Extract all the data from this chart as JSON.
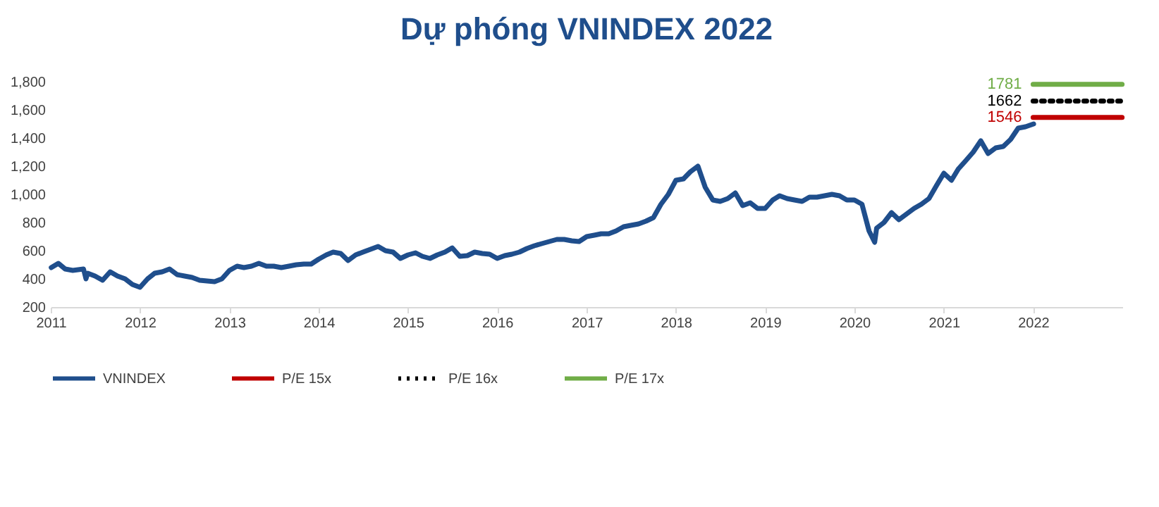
{
  "chart_data": {
    "type": "line",
    "title": "Dự phóng VNINDEX 2022",
    "xlim": [
      "2011-01-01",
      "2023-01-01"
    ],
    "xticks": [
      "2011",
      "2012",
      "2013",
      "2014",
      "2015",
      "2016",
      "2017",
      "2018",
      "2019",
      "2020",
      "2021",
      "2022"
    ],
    "ylim": [
      200,
      1800
    ],
    "yticks": [
      200,
      400,
      600,
      800,
      {
        "value": 1000,
        "label": "1,000"
      },
      {
        "value": 1200,
        "label": "1,200"
      },
      {
        "value": 1400,
        "label": "1,400"
      },
      {
        "value": 1600,
        "label": "1,600"
      },
      {
        "value": 1800,
        "label": "1,800"
      }
    ],
    "grid": false,
    "legend": "bottom",
    "marker": "none",
    "series": [
      {
        "name": "VNINDEX",
        "color": "#1f4e8c",
        "line_style": "solid",
        "x": [
          "2011-01-03",
          "2011-02",
          "2011-03",
          "2011-04",
          "2011-05-15",
          "2011-05-25",
          "2011-06",
          "2011-07",
          "2011-08",
          "2011-09",
          "2011-10",
          "2011-11",
          "2011-12",
          "2012-01",
          "2012-02",
          "2012-03",
          "2012-04",
          "2012-05",
          "2012-06",
          "2012-07",
          "2012-08",
          "2012-09",
          "2012-10",
          "2012-11",
          "2012-12",
          "2013-01",
          "2013-02",
          "2013-03",
          "2013-04",
          "2013-05",
          "2013-06",
          "2013-07",
          "2013-08",
          "2013-09",
          "2013-10",
          "2013-11",
          "2013-12",
          "2014-01",
          "2014-02",
          "2014-03",
          "2014-04",
          "2014-05",
          "2014-06",
          "2014-07",
          "2014-08",
          "2014-09",
          "2014-10",
          "2014-11",
          "2014-12",
          "2015-01",
          "2015-02",
          "2015-03",
          "2015-04",
          "2015-05",
          "2015-06",
          "2015-07",
          "2015-08",
          "2015-09",
          "2015-10",
          "2015-11",
          "2015-12",
          "2016-01",
          "2016-02",
          "2016-03",
          "2016-04",
          "2016-05",
          "2016-06",
          "2016-07",
          "2016-08",
          "2016-09",
          "2016-10",
          "2016-11",
          "2016-12",
          "2017-01",
          "2017-02",
          "2017-03",
          "2017-04",
          "2017-05",
          "2017-06",
          "2017-07",
          "2017-08",
          "2017-09",
          "2017-10",
          "2017-11",
          "2017-12",
          "2018-01",
          "2018-02",
          "2018-03",
          "2018-04",
          "2018-05",
          "2018-06",
          "2018-07",
          "2018-08",
          "2018-09",
          "2018-10",
          "2018-11",
          "2018-12",
          "2019-01",
          "2019-02",
          "2019-03",
          "2019-04",
          "2019-05",
          "2019-06",
          "2019-07",
          "2019-08",
          "2019-09",
          "2019-10",
          "2019-11",
          "2019-12",
          "2020-01",
          "2020-02",
          "2020-03",
          "2020-03-24",
          "2020-04",
          "2020-05",
          "2020-06",
          "2020-07",
          "2020-08",
          "2020-09",
          "2020-10",
          "2020-11",
          "2020-12",
          "2021-01",
          "2021-02",
          "2021-03",
          "2021-04",
          "2021-05",
          "2021-06",
          "2021-07",
          "2021-08",
          "2021-09",
          "2021-10",
          "2021-11",
          "2021-12",
          "2022-01-03"
        ],
        "values": [
          480,
          510,
          470,
          460,
          470,
          400,
          440,
          420,
          390,
          450,
          420,
          400,
          360,
          340,
          400,
          440,
          450,
          470,
          430,
          420,
          410,
          390,
          385,
          380,
          400,
          460,
          490,
          480,
          490,
          510,
          490,
          490,
          480,
          490,
          500,
          505,
          505,
          540,
          570,
          590,
          580,
          530,
          570,
          590,
          610,
          630,
          600,
          590,
          545,
          570,
          585,
          560,
          545,
          570,
          590,
          620,
          560,
          565,
          590,
          580,
          575,
          545,
          565,
          575,
          590,
          615,
          635,
          650,
          665,
          680,
          680,
          670,
          665,
          700,
          710,
          720,
          720,
          740,
          770,
          780,
          790,
          810,
          835,
          930,
          1000,
          1100,
          1110,
          1160,
          1200,
          1050,
          960,
          950,
          970,
          1010,
          920,
          940,
          900,
          900,
          960,
          990,
          970,
          960,
          950,
          980,
          980,
          990,
          1000,
          990,
          960,
          960,
          930,
          740,
          660,
          760,
          800,
          870,
          820,
          860,
          900,
          930,
          970,
          1060,
          1150,
          1100,
          1180,
          1240,
          1300,
          1380,
          1290,
          1330,
          1340,
          1390,
          1470,
          1480,
          1500
        ]
      },
      {
        "name": "P/E 15x",
        "color": "#c00000",
        "line_style": "solid",
        "x": [
          "2022-01-01",
          "2022-12-31"
        ],
        "values": [
          1546,
          1546
        ],
        "value_labels": [
          "1546",
          null
        ]
      },
      {
        "name": "P/E 16x",
        "color": "#000000",
        "line_style": "dotted",
        "x": [
          "2022-01-01",
          "2022-12-31"
        ],
        "values": [
          1662,
          1662
        ],
        "value_labels": [
          "1662",
          null
        ]
      },
      {
        "name": "P/E 17x",
        "color": "#70ad47",
        "line_style": "solid",
        "x": [
          "2022-01-01",
          "2022-12-31"
        ],
        "values": [
          1781,
          1781
        ],
        "value_labels": [
          "1781",
          null
        ]
      }
    ]
  }
}
